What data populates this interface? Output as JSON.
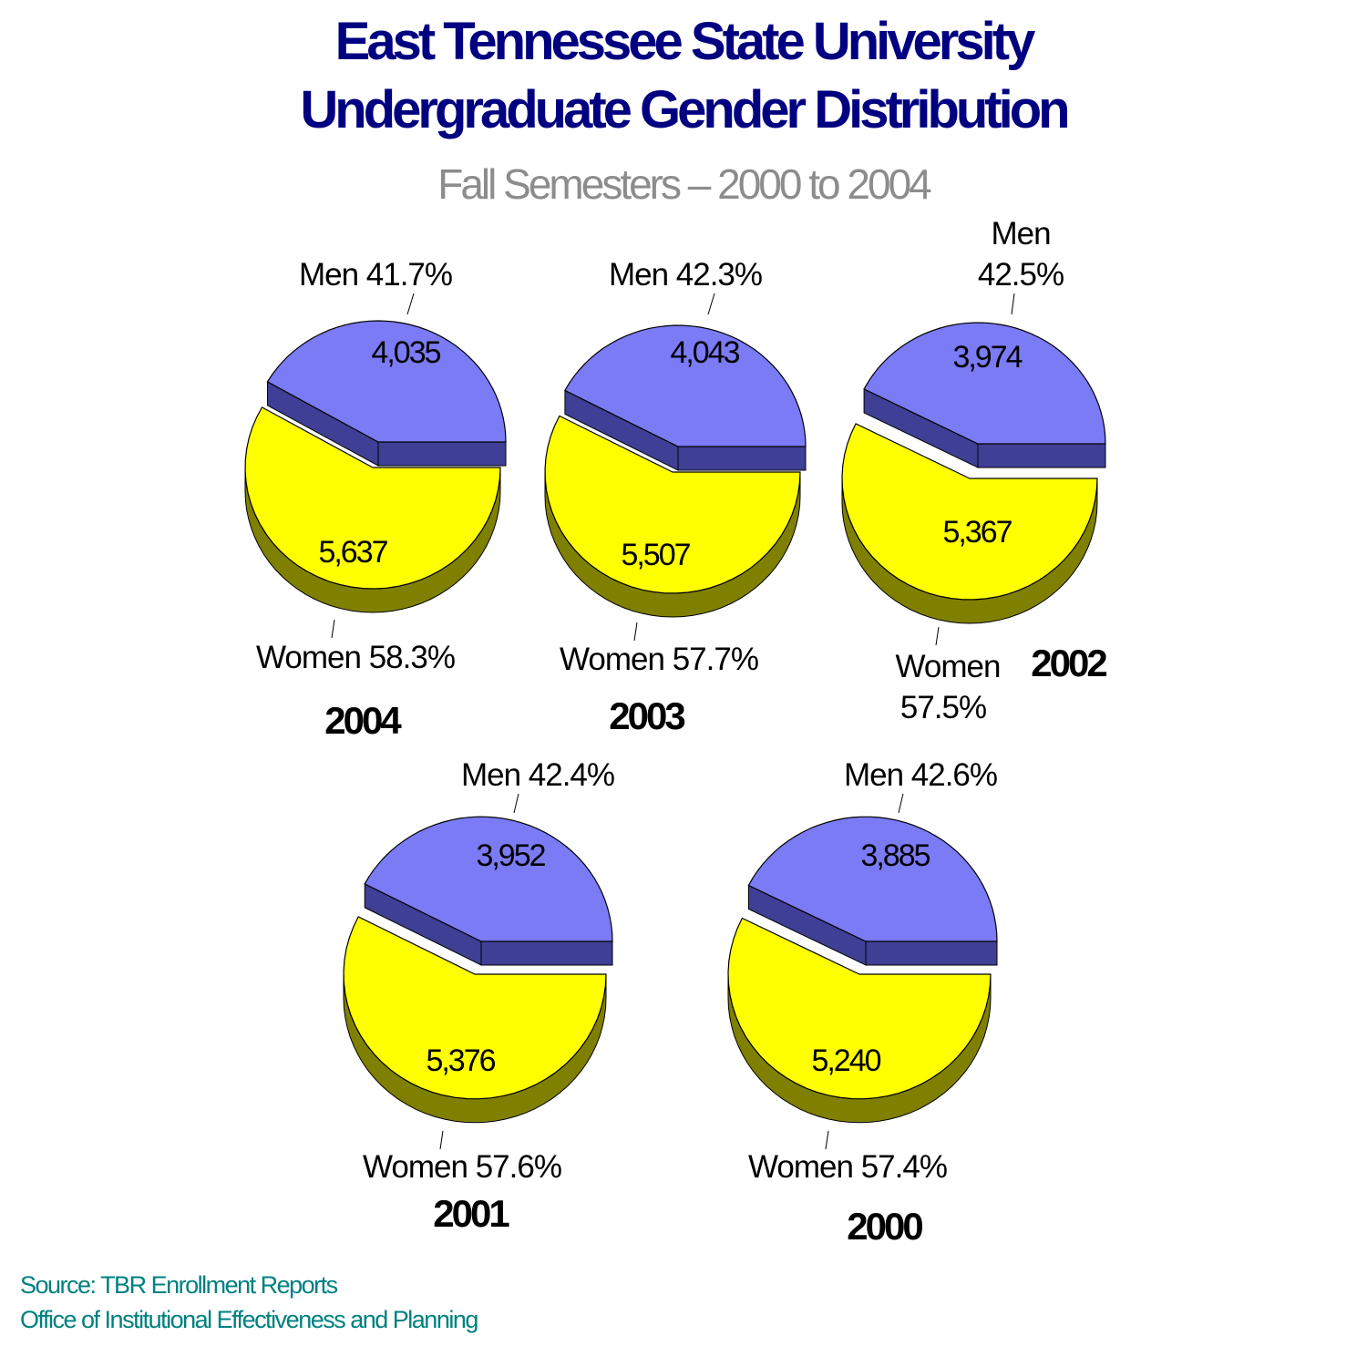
{
  "title_line1": "East Tennessee State University",
  "title_line2": "Undergraduate Gender Distribution",
  "subtitle": "Fall Semesters – 2000 to 2004",
  "footer": {
    "source": "Source:  TBR Enrollment Reports",
    "office": "Office of Institutional Effectiveness and Planning"
  },
  "colors": {
    "men_top": "#7b7bf5",
    "men_side": "#3f3f96",
    "women_top": "#ffff00",
    "women_side": "#808000",
    "year_label": "#000000",
    "text": "#000000"
  },
  "chart_data": [
    {
      "type": "pie",
      "title": "2004",
      "categories": [
        "Men",
        "Women"
      ],
      "values": [
        4035,
        5637
      ],
      "value_labels": [
        "4,035",
        "5,637"
      ],
      "percent_labels": [
        "41.7%",
        "58.3%"
      ]
    },
    {
      "type": "pie",
      "title": "2003",
      "categories": [
        "Men",
        "Women"
      ],
      "values": [
        4043,
        5507
      ],
      "value_labels": [
        "4,043",
        "5,507"
      ],
      "percent_labels": [
        "42.3%",
        "57.7%"
      ]
    },
    {
      "type": "pie",
      "title": "2002",
      "categories": [
        "Men",
        "Women"
      ],
      "values": [
        3974,
        5367
      ],
      "value_labels": [
        "3,974",
        "5,367"
      ],
      "percent_labels": [
        "42.5%",
        "57.5%"
      ]
    },
    {
      "type": "pie",
      "title": "2001",
      "categories": [
        "Men",
        "Women"
      ],
      "values": [
        3952,
        5376
      ],
      "value_labels": [
        "3,952",
        "5,376"
      ],
      "percent_labels": [
        "42.4%",
        "57.6%"
      ]
    },
    {
      "type": "pie",
      "title": "2000",
      "categories": [
        "Men",
        "Women"
      ],
      "values": [
        3885,
        5240
      ],
      "value_labels": [
        "3,885",
        "5,240"
      ],
      "percent_labels": [
        "42.6%",
        "57.4%"
      ]
    }
  ]
}
